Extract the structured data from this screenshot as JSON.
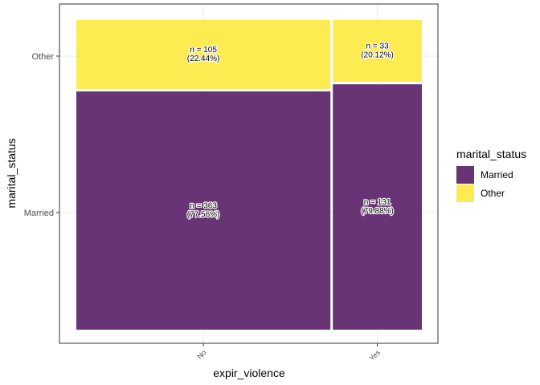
{
  "chart_data": {
    "type": "mosaic",
    "xlabel": "expir_violence",
    "ylabel": "marital_status",
    "categories": [
      "No",
      "Yes"
    ],
    "y_categories": [
      "Married",
      "Other"
    ],
    "legend": {
      "title": "marital_status",
      "position": "right",
      "items": [
        {
          "label": "Married",
          "color": "#440154"
        },
        {
          "label": "Other",
          "color": "#FDE725"
        }
      ]
    },
    "grid": true,
    "cells": [
      {
        "x": "No",
        "fill": "Married",
        "n": 363,
        "pct": "77.56%",
        "label_line1": "n = 363",
        "label_line2": "(77.56%)"
      },
      {
        "x": "No",
        "fill": "Other",
        "n": 105,
        "pct": "22.44%",
        "label_line1": "n = 105",
        "label_line2": "(22.44%)"
      },
      {
        "x": "Yes",
        "fill": "Married",
        "n": 131,
        "pct": "79.88%",
        "label_line1": "n = 131",
        "label_line2": "(79.88%)"
      },
      {
        "x": "Yes",
        "fill": "Other",
        "n": 33,
        "pct": "20.12%",
        "label_line1": "n = 33",
        "label_line2": "(20.12%)"
      }
    ],
    "totals": {
      "No": 468,
      "Yes": 164
    }
  }
}
